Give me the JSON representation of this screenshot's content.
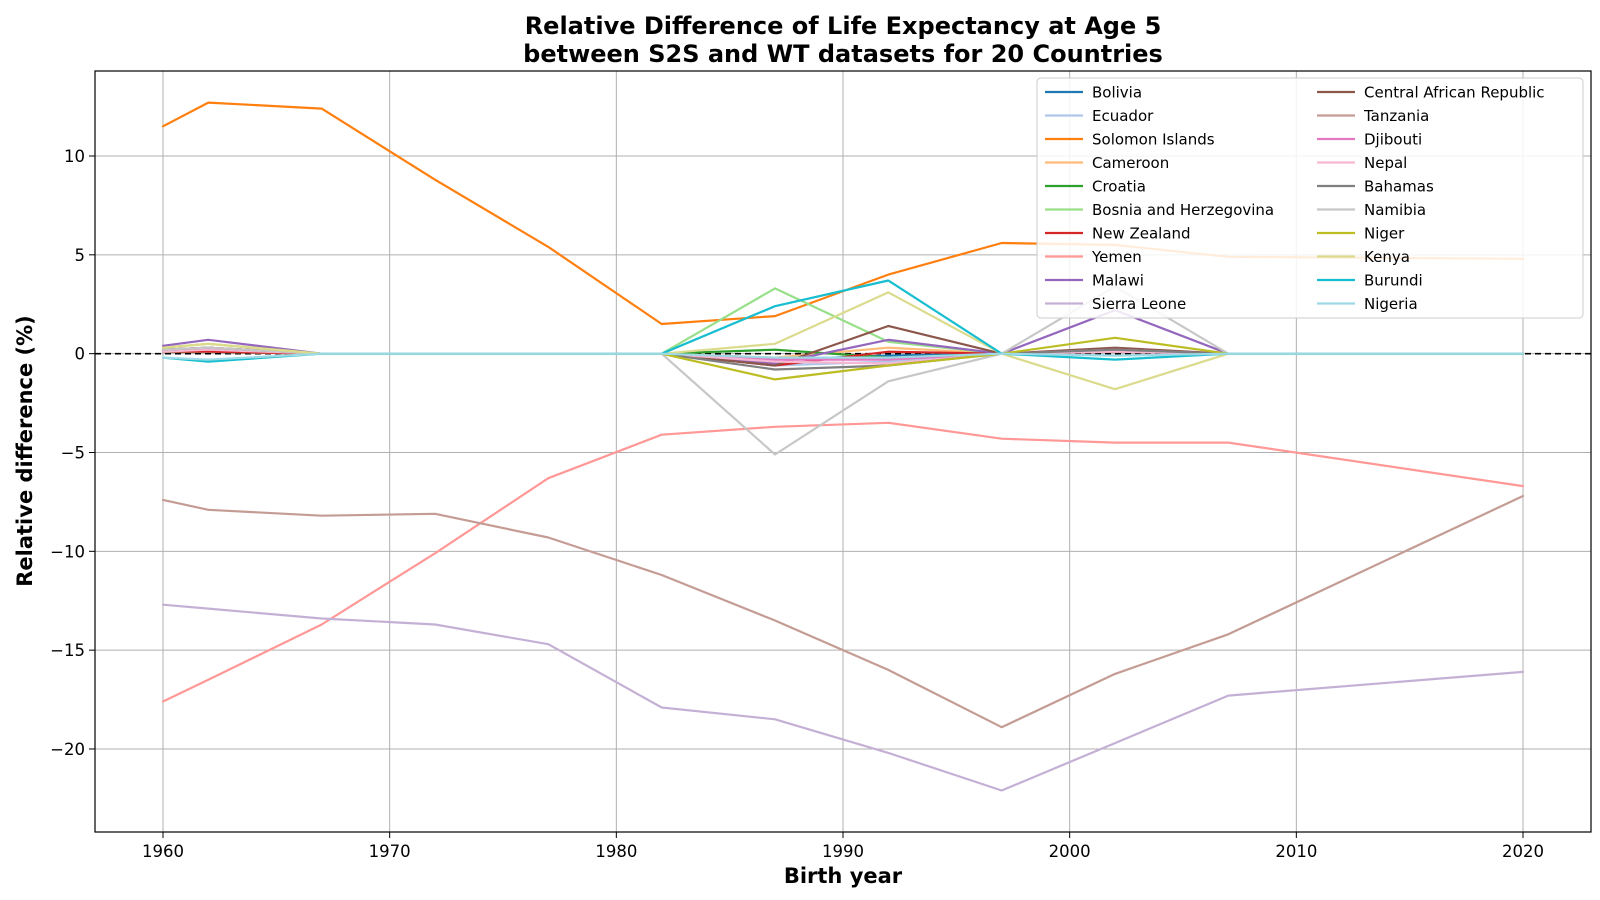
{
  "chart_data": {
    "type": "line",
    "title": [
      "Relative Difference of Life Expectancy at Age 5",
      "between S2S and WT datasets for 20 Countries"
    ],
    "xlabel": "Birth year",
    "ylabel": "Relative difference (%)",
    "xlim": [
      1957,
      2023
    ],
    "ylim": [
      -24.2,
      14.3
    ],
    "xticks": [
      1960,
      1970,
      1980,
      1990,
      2000,
      2010,
      2020
    ],
    "yticks": [
      -20,
      -15,
      -10,
      -5,
      0,
      5,
      10
    ],
    "grid": true,
    "legend_position": "top-right",
    "legend_columns": 2,
    "reference_line": {
      "y": 0,
      "style": "dashed",
      "color": "#000000"
    },
    "x": [
      1960,
      1962,
      1967,
      1972,
      1977,
      1982,
      1987,
      1992,
      1997,
      2002,
      2007,
      2020
    ],
    "series": [
      {
        "name": "Bolivia",
        "color": "#1f77b4",
        "values": [
          0.1,
          0.1,
          0,
          0,
          0,
          0,
          -0.3,
          -0.1,
          0,
          0.1,
          0,
          0
        ]
      },
      {
        "name": "Ecuador",
        "color": "#aec7e8",
        "values": [
          0.1,
          0.1,
          0,
          0,
          0,
          0,
          -0.6,
          -0.4,
          0,
          0.1,
          0,
          0
        ]
      },
      {
        "name": "Solomon Islands",
        "color": "#ff7f0e",
        "values": [
          11.5,
          12.7,
          12.4,
          8.8,
          5.4,
          1.5,
          1.9,
          4.0,
          5.6,
          5.5,
          4.9,
          4.8
        ]
      },
      {
        "name": "Cameroon",
        "color": "#ffbb78",
        "values": [
          0.2,
          0.3,
          0,
          0,
          0,
          0,
          -0.2,
          0.3,
          0,
          0.2,
          0,
          0
        ]
      },
      {
        "name": "Croatia",
        "color": "#2ca02c",
        "values": [
          0.1,
          0.1,
          0,
          0,
          0,
          0,
          0.2,
          -0.2,
          0,
          0.1,
          0,
          0
        ]
      },
      {
        "name": "Bosnia and Herzegovina",
        "color": "#98df8a",
        "values": [
          0.1,
          0.1,
          0,
          0,
          0,
          0,
          3.3,
          0.6,
          0,
          0.2,
          0,
          0
        ]
      },
      {
        "name": "New Zealand",
        "color": "#d62728",
        "values": [
          0.1,
          0.1,
          0,
          0,
          0,
          0,
          -0.6,
          0.1,
          0,
          0.1,
          0,
          0
        ]
      },
      {
        "name": "Yemen",
        "color": "#ff9896",
        "values": [
          -17.6,
          -16.5,
          -13.7,
          -10.1,
          -6.3,
          -4.1,
          -3.7,
          -3.5,
          -4.3,
          -4.5,
          -4.5,
          -6.7
        ]
      },
      {
        "name": "Malawi",
        "color": "#9467bd",
        "values": [
          0.4,
          0.7,
          0,
          0,
          0,
          0,
          -0.5,
          0.7,
          0,
          2.2,
          0,
          0
        ]
      },
      {
        "name": "Sierra Leone",
        "color": "#c5b0d5",
        "values": [
          -12.7,
          -12.9,
          -13.4,
          -13.7,
          -14.7,
          -17.9,
          -18.5,
          -20.2,
          -22.1,
          -19.7,
          -17.3,
          -16.1
        ]
      },
      {
        "name": "Central African Republic",
        "color": "#8c564b",
        "values": [
          0.2,
          0.3,
          0,
          0,
          0,
          0,
          -0.6,
          1.4,
          0,
          0.3,
          0,
          0
        ]
      },
      {
        "name": "Tanzania",
        "color": "#c49c94",
        "values": [
          -7.4,
          -7.9,
          -8.2,
          -8.1,
          -9.3,
          -11.2,
          -13.5,
          -16.0,
          -18.9,
          -16.2,
          -14.2,
          -7.2
        ]
      },
      {
        "name": "Djibouti",
        "color": "#e377c2",
        "values": [
          0.2,
          0.3,
          0,
          0,
          0,
          0,
          -0.3,
          -0.3,
          0,
          0.2,
          0,
          0
        ]
      },
      {
        "name": "Nepal",
        "color": "#f7b6d2",
        "values": [
          0.1,
          0.2,
          0,
          0,
          0,
          0,
          -0.4,
          -0.5,
          0,
          0.1,
          0,
          0
        ]
      },
      {
        "name": "Bahamas",
        "color": "#7f7f7f",
        "values": [
          0.2,
          0.3,
          0,
          0,
          0,
          0,
          -0.8,
          -0.6,
          0,
          0.2,
          0,
          0
        ]
      },
      {
        "name": "Namibia",
        "color": "#c7c7c7",
        "values": [
          0.2,
          0.3,
          0,
          0,
          0,
          0,
          -5.1,
          -1.4,
          0,
          3.4,
          0,
          0
        ]
      },
      {
        "name": "Niger",
        "color": "#bcbd22",
        "values": [
          0.3,
          0.5,
          0,
          0,
          0,
          0,
          -1.3,
          -0.6,
          0,
          0.8,
          0,
          0
        ]
      },
      {
        "name": "Kenya",
        "color": "#dbdb8d",
        "values": [
          0.3,
          0.5,
          0,
          0,
          0,
          0,
          0.5,
          3.1,
          0,
          -1.8,
          0,
          0
        ]
      },
      {
        "name": "Burundi",
        "color": "#17becf",
        "values": [
          -0.2,
          -0.4,
          0,
          0,
          0,
          0,
          2.4,
          3.7,
          0,
          -0.3,
          0,
          0
        ]
      },
      {
        "name": "Nigeria",
        "color": "#9edae5",
        "values": [
          -0.2,
          -0.3,
          0,
          0,
          0,
          0,
          -0.2,
          -0.2,
          0,
          -0.1,
          0,
          0
        ]
      }
    ]
  }
}
